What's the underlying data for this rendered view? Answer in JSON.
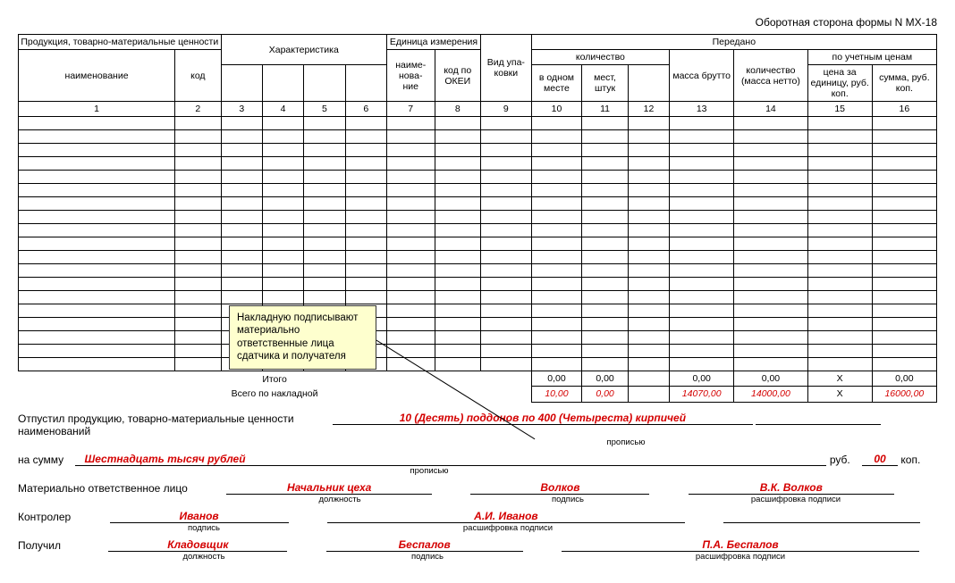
{
  "title": "Оборотная сторона формы N МХ-18",
  "headers": {
    "product": "Продукция, товарно-материальные ценности",
    "name": "наименование",
    "code": "код",
    "char": "Характеристика",
    "unit": "Единица измерения",
    "unit_name": "наиме-\nнова-\nние",
    "okei": "код по ОКЕИ",
    "pack": "Вид упа-\nковки",
    "transferred": "Передано",
    "quantity": "количество",
    "in_one": "в одном месте",
    "pieces": "мест, штук",
    "mass_brutto": "масса брутто",
    "mass_netto": "количество (масса нетто)",
    "by_price": "по учетным ценам",
    "price_unit": "цена за единицу, руб. коп.",
    "sum": "сумма, руб. коп."
  },
  "col_numbers": [
    "1",
    "2",
    "3",
    "4",
    "5",
    "6",
    "7",
    "8",
    "9",
    "10",
    "11",
    "12",
    "13",
    "14",
    "15",
    "16"
  ],
  "empty_rows": 19,
  "totals": {
    "itogo_label": "Итого",
    "itogo": {
      "c10": "0,00",
      "c11": "0,00",
      "c12": "",
      "c13": "0,00",
      "c14": "0,00",
      "c15": "Х",
      "c16": "0,00"
    },
    "vsego_label": "Всего по накладной",
    "vsego": {
      "c10": "10,00",
      "c11": "0,00",
      "c12": "",
      "c13": "14070,00",
      "c14": "14000,00",
      "c15": "Х",
      "c16": "16000,00"
    }
  },
  "tooltip": "Накладную подписывают материально ответственные лица сдатчика и получателя",
  "footer": {
    "released": "Отпустил продукцию, товарно-материальные ценности",
    "released_text": "10 (Десять) поддонов по 400 (Четыреста) кирпичей",
    "names_label": "наименований",
    "sum_label": "на сумму",
    "sum_words": "Шестнадцать тысяч рублей",
    "rub": "руб.",
    "kop_val": "00",
    "kop": "коп.",
    "propis": "прописью",
    "resp_person": "Материально ответственное лицо",
    "position": "должность",
    "signature": "подпись",
    "decode": "расшифровка подписи",
    "controller": "Контролер",
    "received": "Получил",
    "resp_pos": "Начальник цеха",
    "resp_sign": "Волков",
    "resp_name": "В.К. Волков",
    "ctrl_sign": "Иванов",
    "ctrl_name": "А.И. Иванов",
    "recv_pos": "Кладовщик",
    "recv_sign": "Беспалов",
    "recv_name": "П.А. Беспалов"
  }
}
